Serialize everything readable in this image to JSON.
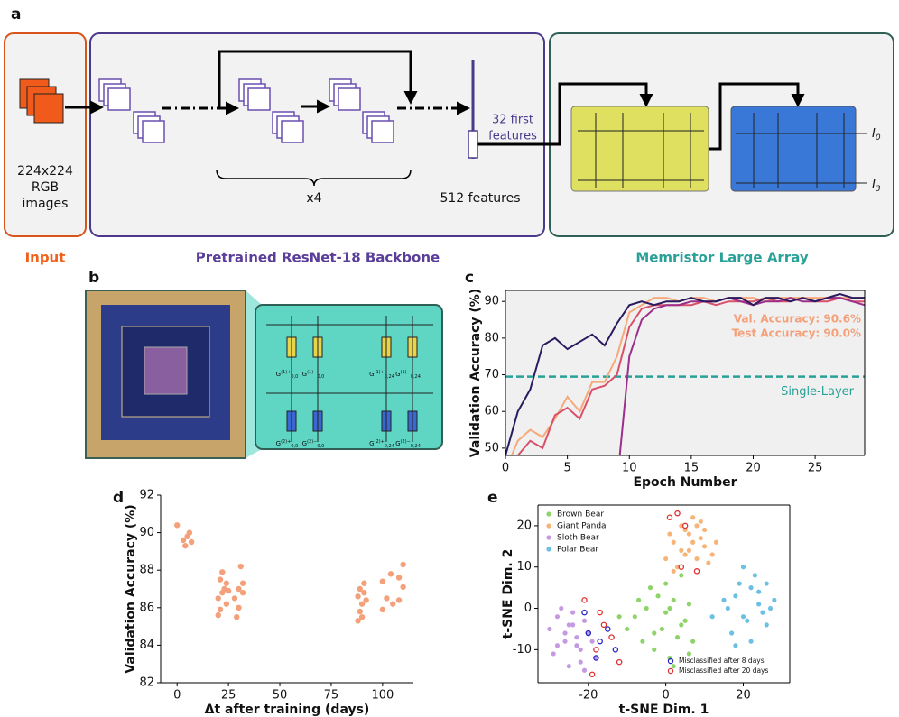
{
  "panel_labels": [
    "a",
    "b",
    "c",
    "d",
    "e"
  ],
  "diagram": {
    "input_text": [
      "224x224",
      "RGB",
      "images"
    ],
    "input_label": "Input",
    "backbone_label": "Pretrained ResNet-18 Backbone",
    "repeat": "x4",
    "first_features": [
      "32 first",
      "features"
    ],
    "all_features": "512 features",
    "array_label": "Memristor Large Array",
    "outputs": [
      {
        "base": "I",
        "sub": "0"
      },
      {
        "base": "I",
        "sub": "3"
      }
    ],
    "conductances": [
      {
        "base": "G",
        "sup": "(1)+",
        "sub": "0,0"
      },
      {
        "base": "G",
        "sup": "(1)−",
        "sub": "0,0"
      },
      {
        "base": "G",
        "sup": "(1)+",
        "sub": "0,24"
      },
      {
        "base": "G",
        "sup": "(1)−",
        "sub": "0,24"
      },
      {
        "base": "G",
        "sup": "(2)+",
        "sub": "0,0"
      },
      {
        "base": "G",
        "sup": "(2)−",
        "sub": "0,0"
      },
      {
        "base": "G",
        "sup": "(2)+",
        "sub": "0,24"
      },
      {
        "base": "G",
        "sup": "(2)−",
        "sub": "0,24"
      }
    ]
  },
  "chart_data": [
    {
      "type": "line",
      "xlabel": "Epoch Number",
      "ylabel": "Validation Accuracy (%)",
      "x": [
        0,
        1,
        2,
        3,
        4,
        5,
        6,
        7,
        8,
        9,
        10,
        11,
        12,
        13,
        14,
        15,
        16,
        17,
        18,
        19,
        20,
        21,
        22,
        23,
        24,
        25,
        26,
        27,
        28,
        29
      ],
      "series": [
        {
          "color": "#f6a97a",
          "values": [
            44,
            52,
            55,
            53,
            58,
            64,
            60,
            68,
            68,
            75,
            87,
            89,
            91,
            91,
            90,
            91,
            91,
            90,
            91,
            91,
            91,
            90,
            91,
            91,
            91,
            91,
            91,
            91,
            91,
            91
          ]
        },
        {
          "color": "#d9506a",
          "values": [
            40,
            48,
            52,
            50,
            59,
            61,
            58,
            66,
            67,
            70,
            83,
            88,
            89,
            89,
            89,
            89,
            90,
            89,
            90,
            90,
            90,
            91,
            90,
            90,
            91,
            90,
            90,
            91,
            90,
            90
          ]
        },
        {
          "color": "#9b2f8a",
          "values": [
            null,
            null,
            null,
            null,
            null,
            null,
            null,
            null,
            null,
            40,
            75,
            85,
            88,
            89,
            89,
            90,
            90,
            90,
            91,
            90,
            89,
            90,
            90,
            91,
            90,
            90,
            91,
            91,
            90,
            89
          ]
        },
        {
          "color": "#2b1a5e",
          "values": [
            48,
            60,
            66,
            78,
            80,
            77,
            79,
            81,
            78,
            84,
            89,
            90,
            89,
            90,
            90,
            91,
            90,
            90,
            91,
            91,
            89,
            91,
            91,
            90,
            91,
            90,
            91,
            92,
            91,
            91
          ]
        }
      ],
      "hline": {
        "value": 69.5,
        "label": "Single-Layer",
        "color": "#2aa198"
      },
      "annotations": [
        "Val. Accuracy: 90.6%",
        "Test Accuracy: 90.0%"
      ],
      "annotation_color": "#f4a07a",
      "facecolor": "#f0f0f0",
      "xlim": [
        0,
        29
      ],
      "ylim": [
        48,
        93
      ],
      "xticks": [
        0,
        5,
        10,
        15,
        20,
        25
      ],
      "yticks": [
        50,
        60,
        70,
        80,
        90
      ]
    },
    {
      "type": "scatter",
      "xlabel": "Δt after training (days)",
      "ylabel": "Validation Accuracy (%)",
      "spines": [
        "left",
        "bottom"
      ],
      "series": [
        {
          "color": "#f4a07a",
          "x": [
            0,
            3,
            4,
            5,
            6,
            7,
            20,
            20,
            21,
            21,
            22,
            22,
            23,
            24,
            24,
            25,
            28,
            29,
            30,
            30,
            31,
            32,
            32,
            88,
            88,
            89,
            89,
            90,
            90,
            91,
            91,
            92,
            100,
            100,
            102,
            104,
            105,
            108,
            108,
            110,
            110
          ],
          "y": [
            90.4,
            89.6,
            89.3,
            89.8,
            90.0,
            89.5,
            85.6,
            86.5,
            87.5,
            85.9,
            86.8,
            87.9,
            87.0,
            86.2,
            87.3,
            86.9,
            86.5,
            85.5,
            87.0,
            86.0,
            88.2,
            86.8,
            87.3,
            85.3,
            86.6,
            85.8,
            87.0,
            86.2,
            85.5,
            86.8,
            87.3,
            86.4,
            85.9,
            87.4,
            86.5,
            87.8,
            86.2,
            87.6,
            86.4,
            88.3,
            87.1
          ]
        }
      ],
      "xlim": [
        -8,
        115
      ],
      "ylim": [
        82,
        92
      ],
      "xticks": [
        0,
        25,
        50,
        75,
        100
      ],
      "yticks": [
        82,
        84,
        86,
        88,
        90,
        92
      ]
    },
    {
      "type": "scatter",
      "xlabel": "t-SNE Dim. 1",
      "ylabel": "t-SNE Dim. 2",
      "series": [
        {
          "name": "Brown Bear",
          "color": "#8ed46a",
          "marker": "filled",
          "x": [
            -8,
            -5,
            -2,
            0,
            2,
            4,
            6,
            -6,
            -3,
            1,
            3,
            5,
            -10,
            -4,
            0,
            -1,
            7,
            -7,
            2,
            -12,
            4,
            -3,
            1,
            6
          ],
          "y": [
            -2,
            0,
            3,
            -1,
            2,
            -4,
            1,
            -8,
            -10,
            -12,
            -7,
            -3,
            -5,
            5,
            6,
            -5,
            -8,
            2,
            -14,
            -2,
            8,
            -6,
            0,
            -11
          ]
        },
        {
          "name": "Giant Panda",
          "color": "#f7b478",
          "marker": "filled",
          "x": [
            0,
            2,
            4,
            6,
            8,
            10,
            12,
            3,
            5,
            7,
            9,
            11,
            1,
            6,
            8,
            4,
            10,
            13,
            2,
            7,
            5,
            9
          ],
          "y": [
            12,
            16,
            14,
            18,
            20,
            15,
            13,
            10,
            19,
            22,
            17,
            11,
            18,
            14,
            12,
            20,
            19,
            16,
            9,
            16,
            13,
            21
          ]
        },
        {
          "name": "Sloth Bear",
          "color": "#c49be2",
          "marker": "filled",
          "x": [
            -30,
            -28,
            -26,
            -24,
            -22,
            -20,
            -18,
            -27,
            -25,
            -23,
            -21,
            -29,
            -26,
            -24,
            -22,
            -19,
            -28,
            -25,
            -21,
            -23
          ],
          "y": [
            -5,
            -2,
            -8,
            -4,
            -10,
            -6,
            -12,
            0,
            -14,
            -9,
            -3,
            -11,
            -6,
            -1,
            -13,
            -8,
            -9,
            -4,
            -15,
            -7
          ]
        },
        {
          "name": "Polar Bear",
          "color": "#6cc0e2",
          "marker": "filled",
          "x": [
            16,
            18,
            20,
            22,
            24,
            26,
            28,
            17,
            19,
            21,
            23,
            25,
            27,
            20,
            22,
            24,
            18,
            26,
            12,
            15
          ],
          "y": [
            0,
            3,
            -2,
            5,
            1,
            -4,
            2,
            -6,
            6,
            -3,
            8,
            -1,
            0,
            10,
            -8,
            4,
            -9,
            6,
            -2,
            2
          ]
        },
        {
          "name": "Misclassified after 8 days",
          "color": "#2424c8",
          "marker": "hollow",
          "x": [
            -20,
            -17,
            -15,
            -13,
            -18,
            -21
          ],
          "y": [
            -6,
            -8,
            -5,
            -10,
            -12,
            -1
          ]
        },
        {
          "name": "Misclassified after 20 days",
          "color": "#e03030",
          "marker": "hollow",
          "x": [
            -16,
            -14,
            -18,
            -19,
            -12,
            -17,
            -21,
            1,
            3,
            5,
            4,
            8
          ],
          "y": [
            -4,
            -7,
            -10,
            -16,
            -13,
            -1,
            2,
            22,
            23,
            20,
            10,
            9
          ]
        }
      ],
      "xlim": [
        -33,
        32
      ],
      "ylim": [
        -18,
        25
      ],
      "xticks": [
        -20,
        0,
        20
      ],
      "yticks": [
        -10,
        0,
        10,
        20
      ]
    }
  ]
}
